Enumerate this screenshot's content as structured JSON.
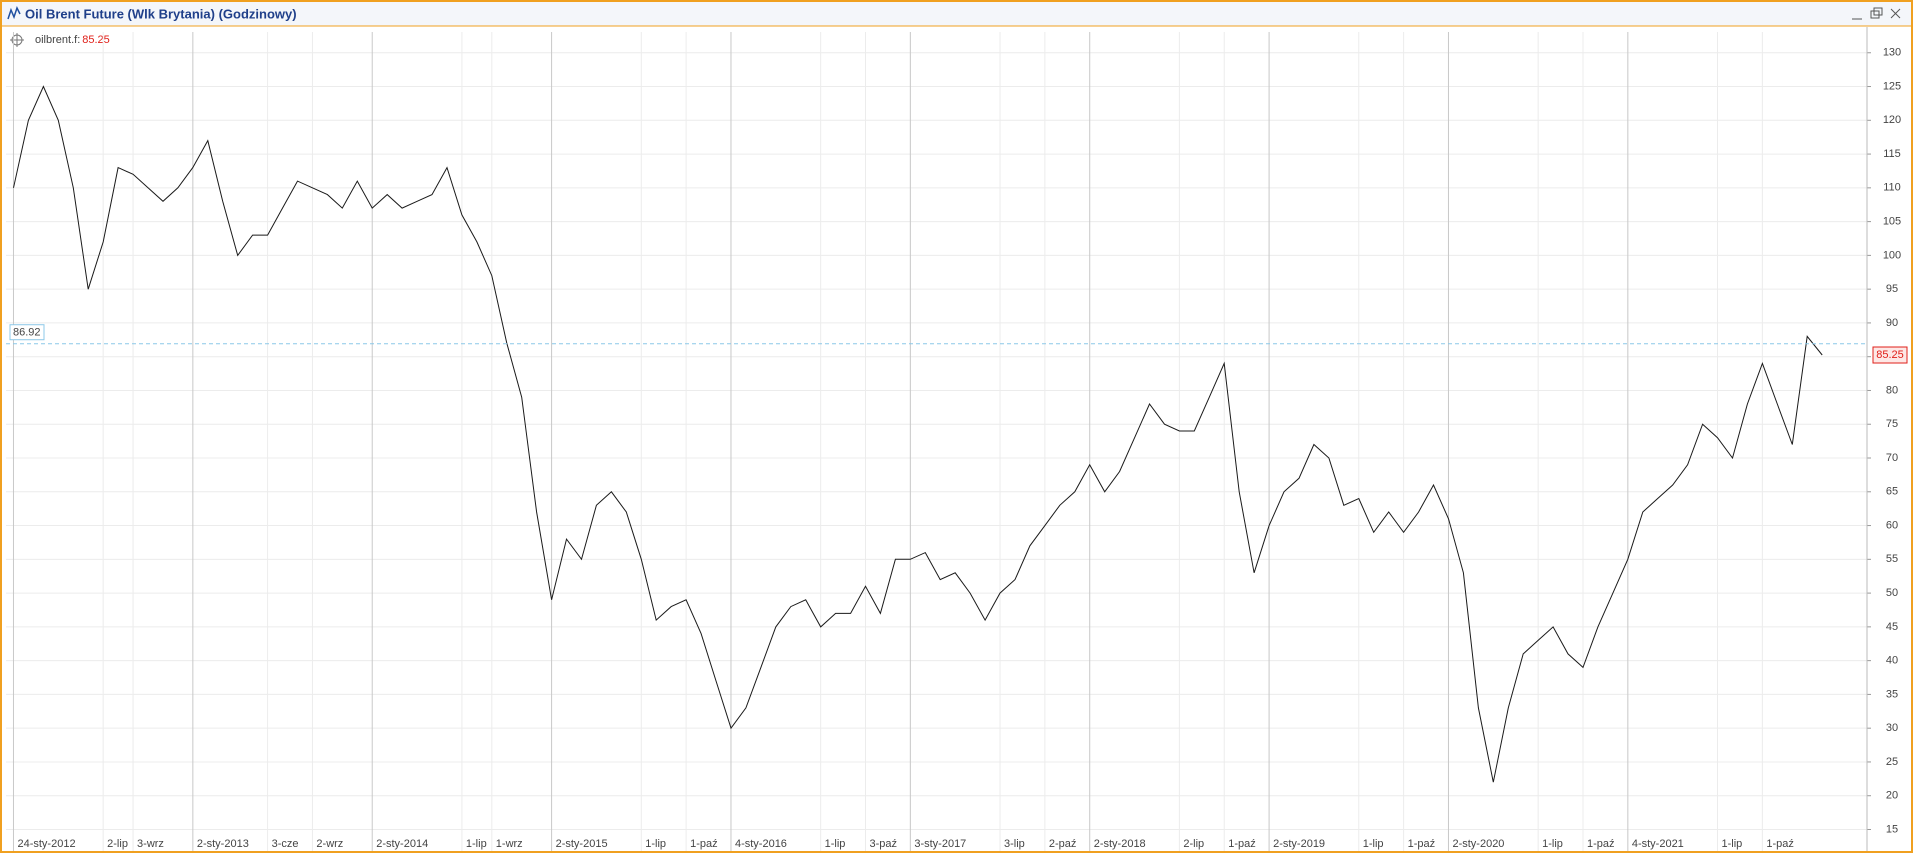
{
  "window": {
    "title": "Oil Brent Future (Wlk Brytania) (Godzinowy)"
  },
  "chart_data": {
    "type": "line",
    "categories": [
      "24-sty-2012",
      null,
      null,
      null,
      null,
      null,
      "2-lip",
      null,
      "3-wrz",
      null,
      null,
      null,
      "2-sty-2013",
      null,
      null,
      null,
      null,
      "3-cze",
      null,
      null,
      "2-wrz",
      null,
      null,
      null,
      "2-sty-2014",
      null,
      null,
      null,
      null,
      null,
      "1-lip",
      null,
      "1-wrz",
      null,
      null,
      null,
      "2-sty-2015",
      null,
      null,
      null,
      null,
      null,
      "1-lip",
      null,
      null,
      "1-paź",
      null,
      null,
      "4-sty-2016",
      null,
      null,
      null,
      null,
      null,
      "1-lip",
      null,
      null,
      "3-paź",
      null,
      null,
      "3-sty-2017",
      null,
      null,
      null,
      null,
      null,
      "3-lip",
      null,
      null,
      "2-paź",
      null,
      null,
      "2-sty-2018",
      null,
      null,
      null,
      null,
      null,
      "2-lip",
      null,
      null,
      "1-paź",
      null,
      null,
      "2-sty-2019",
      null,
      null,
      null,
      null,
      null,
      "1-lip",
      null,
      null,
      "1-paź",
      null,
      null,
      "2-sty-2020",
      null,
      null,
      null,
      null,
      null,
      "1-lip",
      null,
      null,
      "1-paź",
      null,
      null,
      "4-sty-2021",
      null,
      null,
      null,
      null,
      null,
      "1-lip",
      null,
      null,
      "1-paź",
      null,
      null,
      null,
      null
    ],
    "series": [
      {
        "name": "oilbrent.f:",
        "color": "#1a1a1a",
        "values": [
          110,
          120,
          125,
          120,
          110,
          95,
          102,
          113,
          112,
          110,
          108,
          110,
          113,
          117,
          108,
          100,
          103,
          103,
          107,
          111,
          110,
          109,
          107,
          111,
          107,
          109,
          107,
          108,
          109,
          113,
          106,
          102,
          97,
          87,
          79,
          62,
          49,
          58,
          55,
          63,
          65,
          62,
          55,
          46,
          48,
          49,
          44,
          37,
          30,
          33,
          39,
          45,
          48,
          49,
          45,
          47,
          47,
          51,
          47,
          55,
          55,
          56,
          52,
          53,
          50,
          46,
          50,
          52,
          57,
          60,
          63,
          65,
          69,
          65,
          68,
          73,
          78,
          75,
          74,
          74,
          79,
          84,
          65,
          53,
          60,
          65,
          67,
          72,
          70,
          63,
          64,
          59,
          62,
          59,
          62,
          66,
          61,
          53,
          33,
          22,
          33,
          41,
          43,
          45,
          41,
          39,
          45,
          50,
          55,
          62,
          64,
          66,
          69,
          75,
          73,
          70,
          78,
          84,
          78,
          72,
          88,
          85.25
        ]
      }
    ],
    "reference_line": 86.92,
    "reference_color": "#8cc8e8",
    "last_value_color": "#e0201a",
    "ylim": [
      13,
      131
    ],
    "yticks": [
      15,
      20,
      25,
      30,
      35,
      40,
      45,
      50,
      55,
      60,
      65,
      70,
      75,
      80,
      85,
      90,
      95,
      100,
      105,
      110,
      115,
      120,
      125,
      130
    ],
    "grid": true
  }
}
